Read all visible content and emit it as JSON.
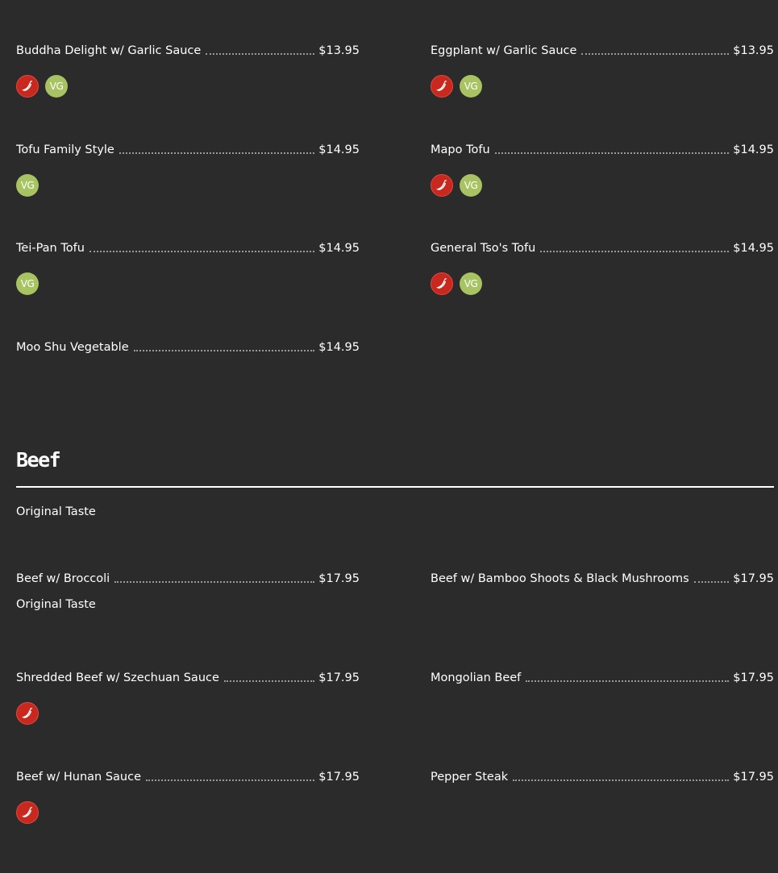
{
  "vegetable_items": [
    {
      "name": "Buddha Delight w/ Garlic Sauce",
      "price": "$13.95",
      "spicy": true,
      "vg": true
    },
    {
      "name": "Eggplant w/ Garlic Sauce",
      "price": "$13.95",
      "spicy": true,
      "vg": true
    },
    {
      "name": "Tofu Family Style",
      "price": "$14.95",
      "spicy": false,
      "vg": true
    },
    {
      "name": "Mapo Tofu",
      "price": "$14.95",
      "spicy": true,
      "vg": true
    },
    {
      "name": "Tei-Pan Tofu",
      "price": "$14.95",
      "spicy": false,
      "vg": true
    },
    {
      "name": "General Tso's Tofu",
      "price": "$14.95",
      "spicy": true,
      "vg": true
    },
    {
      "name": "Moo Shu Vegetable",
      "price": "$14.95",
      "spicy": false,
      "vg": false
    }
  ],
  "beef_section": {
    "title": "Beef",
    "note": "Original Taste"
  },
  "beef_items": [
    {
      "name": "Beef w/ Broccoli",
      "price": "$17.95",
      "spicy": false,
      "note": "Original Taste"
    },
    {
      "name": "Beef w/ Bamboo Shoots & Black Mushrooms",
      "price": "$17.95",
      "spicy": false
    },
    {
      "name": "Shredded Beef w/ Szechuan Sauce",
      "price": "$17.95",
      "spicy": true
    },
    {
      "name": "Mongolian Beef",
      "price": "$17.95",
      "spicy": false
    },
    {
      "name": "Beef w/ Hunan Sauce",
      "price": "$17.95",
      "spicy": true
    },
    {
      "name": "Pepper Steak",
      "price": "$17.95",
      "spicy": false
    }
  ],
  "badges": {
    "vg_label": "VG",
    "spicy_icon": "chili-pepper-icon"
  },
  "colors": {
    "background": "#2b2b2b",
    "spicy": "#c8281e",
    "vegetarian": "#a8c462"
  }
}
